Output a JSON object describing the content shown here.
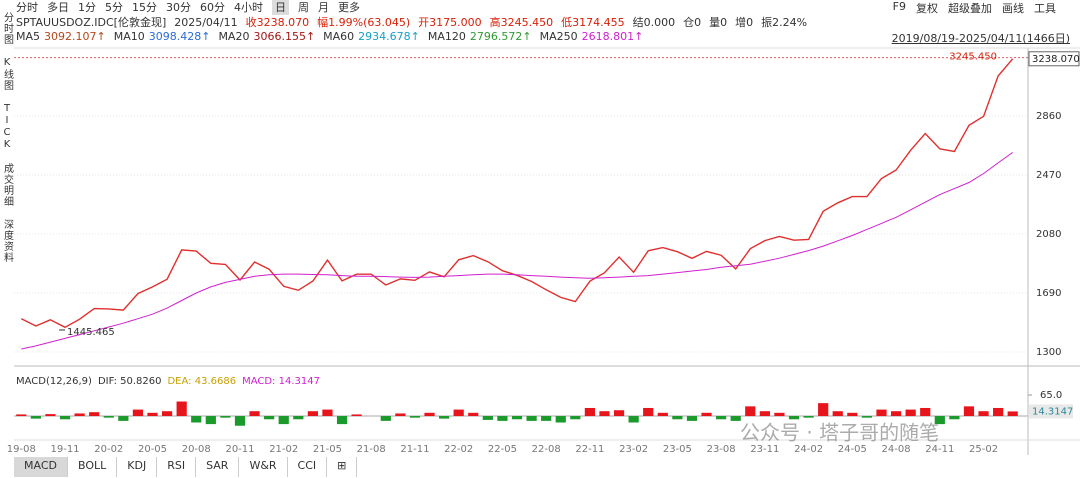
{
  "toolbar": {
    "periods": [
      "分时",
      "多日",
      "1分",
      "5分",
      "15分",
      "30分",
      "60分",
      "4小时",
      "日",
      "周",
      "月",
      "更多"
    ],
    "selected": "日",
    "tools": [
      "F9",
      "复权",
      "超级叠加",
      "画线",
      "工具"
    ]
  },
  "sidebar": [
    "分时图",
    "K线图",
    "TICK",
    "成交明细",
    "深度资料"
  ],
  "quote": {
    "symbol": "SPTAUUSDOZ.IDC[伦敦金现]",
    "date": "2025/04/11",
    "fields": [
      {
        "text": "收3238.070",
        "color": "#d81e06"
      },
      {
        "text": "幅1.99%(63.045)",
        "color": "#d81e06"
      },
      {
        "text": "开3175.000",
        "color": "#d81e06"
      },
      {
        "text": "高3245.450",
        "color": "#d81e06"
      },
      {
        "text": "低3174.455",
        "color": "#d81e06"
      },
      {
        "text": "结0.000",
        "color": "#333333"
      },
      {
        "text": "仓0",
        "color": "#333333"
      },
      {
        "text": "量0",
        "color": "#333333"
      },
      {
        "text": "增0",
        "color": "#333333"
      },
      {
        "text": "振2.24%",
        "color": "#333333"
      }
    ]
  },
  "ma_legend": [
    {
      "label": "MA5",
      "value": "3092.107↑",
      "color": "#b5471b"
    },
    {
      "label": "MA10",
      "value": "3098.428↑",
      "color": "#2a6ad8"
    },
    {
      "label": "MA20",
      "value": "3066.155↑",
      "color": "#a01818"
    },
    {
      "label": "MA60",
      "value": "2934.678↑",
      "color": "#14a0c8"
    },
    {
      "label": "MA120",
      "value": "2796.572↑",
      "color": "#2f9a35"
    },
    {
      "label": "MA250",
      "value": "2618.801↑",
      "color": "#d020d0"
    }
  ],
  "range": "2019/08/19-2025/04/11(1466日)",
  "chart_data": [
    {
      "type": "line",
      "categories": [
        "19-08",
        null,
        null,
        "19-11",
        null,
        null,
        "20-02",
        null,
        null,
        "20-05",
        null,
        null,
        "20-08",
        null,
        null,
        "20-11",
        null,
        null,
        "21-02",
        null,
        null,
        "21-05",
        null,
        null,
        "21-08",
        null,
        null,
        "21-11",
        null,
        null,
        "22-02",
        null,
        null,
        "22-05",
        null,
        null,
        "22-08",
        null,
        null,
        "22-11",
        null,
        null,
        "23-02",
        null,
        null,
        "23-05",
        null,
        null,
        "23-08",
        null,
        null,
        "23-11",
        null,
        null,
        "24-02",
        null,
        null,
        "24-05",
        null,
        null,
        "24-08",
        null,
        null,
        "24-11",
        null,
        null,
        "25-02",
        null,
        null
      ],
      "series": [
        {
          "color": "#e0302e",
          "values": [
            1520,
            1472,
            1513,
            1463,
            1517,
            1587,
            1585,
            1577,
            1686,
            1730,
            1781,
            1975,
            1967,
            1886,
            1879,
            1776,
            1895,
            1847,
            1734,
            1708,
            1769,
            1907,
            1770,
            1814,
            1814,
            1743,
            1783,
            1774,
            1829,
            1797,
            1909,
            1937,
            1897,
            1837,
            1807,
            1766,
            1711,
            1661,
            1633,
            1768,
            1824,
            1928,
            1827,
            1969,
            1990,
            1963,
            1919,
            1965,
            1940,
            1849,
            1983,
            2036,
            2063,
            2039,
            2044,
            2230,
            2286,
            2327,
            2327,
            2447,
            2503,
            2634,
            2744,
            2643,
            2625,
            2798,
            2858,
            3124,
            3238
          ]
        },
        {
          "color": "#d020d0",
          "values": [
            1320,
            1340,
            1365,
            1390,
            1415,
            1440,
            1465,
            1490,
            1520,
            1550,
            1590,
            1640,
            1690,
            1730,
            1760,
            1780,
            1800,
            1810,
            1815,
            1815,
            1812,
            1810,
            1805,
            1800,
            1800,
            1798,
            1795,
            1793,
            1795,
            1800,
            1805,
            1810,
            1815,
            1815,
            1810,
            1805,
            1800,
            1795,
            1790,
            1788,
            1790,
            1795,
            1800,
            1805,
            1815,
            1825,
            1835,
            1845,
            1860,
            1870,
            1880,
            1900,
            1920,
            1945,
            1970,
            2000,
            2035,
            2070,
            2110,
            2150,
            2190,
            2240,
            2290,
            2340,
            2380,
            2420,
            2480,
            2550,
            2619
          ]
        }
      ],
      "ylim": [
        1247,
        3263
      ],
      "yticks": [
        1300,
        1690,
        2080,
        2470,
        2860
      ],
      "grid": true,
      "high": {
        "value": 3245.45,
        "label": "3245.450"
      },
      "low": {
        "value": 1445.465,
        "label": "1445.465"
      },
      "last": {
        "value": 3238.07,
        "label": "3238.070"
      }
    },
    {
      "type": "bar",
      "title": "MACD(12,26,9)",
      "stats": [
        {
          "text": "DIF: 50.8260",
          "color": "#333333"
        },
        {
          "text": "DEA: 43.6686",
          "color": "#c8a000"
        },
        {
          "text": "MACD: 14.3147",
          "color": "#d020d0"
        }
      ],
      "values": [
        5,
        -8,
        6,
        -10,
        8,
        12,
        -5,
        -15,
        20,
        10,
        15,
        45,
        -20,
        -25,
        -5,
        -30,
        15,
        -10,
        -25,
        -10,
        15,
        20,
        -25,
        5,
        0,
        -15,
        8,
        -5,
        10,
        -8,
        20,
        10,
        -12,
        -15,
        -10,
        -15,
        -15,
        -20,
        -10,
        25,
        15,
        18,
        -20,
        25,
        10,
        -10,
        -15,
        10,
        -10,
        -15,
        30,
        15,
        10,
        -10,
        -5,
        40,
        15,
        10,
        -5,
        20,
        15,
        20,
        25,
        -25,
        -10,
        30,
        15,
        25,
        14.3147
      ],
      "up_color": "#e8141c",
      "down_color": "#1a9a2a",
      "ylim": [
        -68,
        124
      ],
      "yticks": [
        {
          "value": 65,
          "label": "65.0"
        }
      ],
      "last": {
        "value": 14.3147,
        "label": "14.3147"
      }
    }
  ],
  "indicator_tabs": [
    "MACD",
    "BOLL",
    "KDJ",
    "RSI",
    "SAR",
    "W&R",
    "CCI",
    "⊞"
  ],
  "watermark": "公众号 · 塔子哥的随笔"
}
